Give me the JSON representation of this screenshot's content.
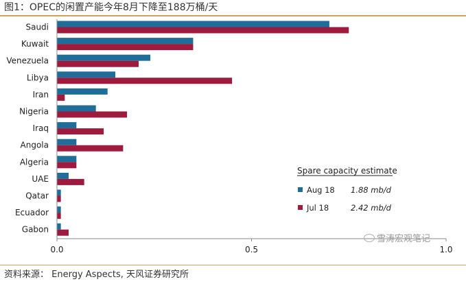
{
  "title": "图1：OPEC的闲置产能今年8月下降至188万桶/天",
  "source": "资料来源： Energy Aspects, 天风证券研究所",
  "watermark": "雪涛宏观笔记",
  "colors": {
    "aug18": "#1f6e9a",
    "jul18": "#9e1b3e",
    "rule": "#d2a25a"
  },
  "chart_data": {
    "type": "bar",
    "orientation": "horizontal",
    "categories": [
      "Saudi",
      "Kuwait",
      "Venezuela",
      "Libya",
      "Iran",
      "Nigeria",
      "Iraq",
      "Angola",
      "Algeria",
      "UAE",
      "Qatar",
      "Ecuador",
      "Gabon"
    ],
    "series": [
      {
        "name": "Aug 18",
        "values": [
          0.7,
          0.35,
          0.24,
          0.15,
          0.13,
          0.1,
          0.05,
          0.05,
          0.05,
          0.03,
          0.01,
          0.01,
          0.01
        ]
      },
      {
        "name": "Jul 18",
        "values": [
          0.75,
          0.35,
          0.21,
          0.45,
          0.02,
          0.18,
          0.12,
          0.17,
          0.05,
          0.07,
          0.01,
          0.01,
          0.03
        ]
      }
    ],
    "xlim": [
      0,
      1.0
    ],
    "xticks": [
      "0.0",
      "0.5",
      "1.0"
    ],
    "xtick_values": [
      0,
      0.5,
      1.0
    ],
    "grid": false,
    "legend": {
      "title": "Spare capacity estimate",
      "placement": "bottom-right",
      "entries": [
        {
          "label": "Aug 18",
          "value": "1.88 mb/d"
        },
        {
          "label": "Jul 18",
          "value": "2.42 mb/d"
        }
      ]
    }
  }
}
